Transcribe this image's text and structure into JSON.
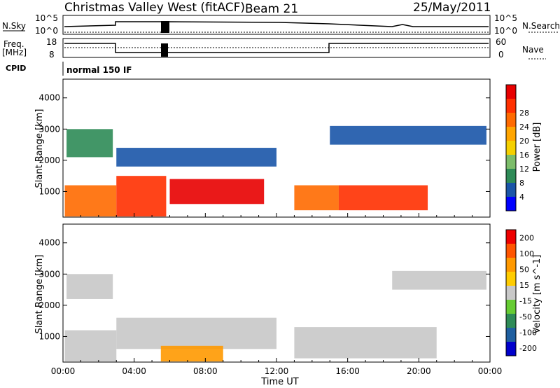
{
  "header": {
    "site": "Christmas Valley West (fitACF)",
    "beam": "Beam 21",
    "date": "25/May/2011"
  },
  "strip": {
    "nsky_label": "N.Sky",
    "nsky_ticks": [
      "10^5",
      "10^0"
    ],
    "nsearch_label": "N.Search",
    "nsearch_ticks": [
      "10^5",
      "10^0"
    ],
    "freq_label": "Freq.",
    "freq_unit": "[MHz]",
    "freq_ticks": [
      "18",
      "8"
    ],
    "nave_label": "Nave",
    "nave_ticks": [
      "60",
      "0"
    ],
    "cpid_label": "CPID",
    "cpid_text": "normal 150 IF"
  },
  "colors": {
    "power": [
      "#0000ff",
      "#1a55a8",
      "#2e8b57",
      "#7cbd6a",
      "#f5d000",
      "#ffa500",
      "#ff6a00",
      "#ff3000",
      "#e80000"
    ],
    "velocity": [
      "#0000cc",
      "#1f5fa0",
      "#2e8b57",
      "#66cc33",
      "#c8c8c8",
      "#ffcc00",
      "#ff9900",
      "#ff5500",
      "#ee0000"
    ]
  },
  "chart_data": [
    {
      "type": "heatmap",
      "title": "",
      "xlabel": "Time UT",
      "ylabel": "Slant Range [km]",
      "x_ticks": [
        "00:00",
        "04:00",
        "08:00",
        "12:00",
        "16:00",
        "20:00",
        "00:00"
      ],
      "xlim": [
        0,
        24
      ],
      "y_ticks": [
        "1000",
        "2000",
        "3000",
        "4000"
      ],
      "ylim": [
        180,
        4600
      ],
      "colorbar": {
        "label": "Power [dB]",
        "ticks": [
          "4",
          "8",
          "12",
          "16",
          "20",
          "24",
          "28"
        ]
      },
      "regions": [
        {
          "t": [
            0.1,
            3.0
          ],
          "r": [
            200,
            1200
          ],
          "level": 6
        },
        {
          "t": [
            0.2,
            2.8
          ],
          "r": [
            2100,
            3000
          ],
          "level": 2
        },
        {
          "t": [
            3.0,
            5.8
          ],
          "r": [
            200,
            1500
          ],
          "level": 7
        },
        {
          "t": [
            6.0,
            11.3
          ],
          "r": [
            600,
            1400
          ],
          "level": 8
        },
        {
          "t": [
            3.0,
            12.0
          ],
          "r": [
            1800,
            2400
          ],
          "level": 1
        },
        {
          "t": [
            13.0,
            15.5
          ],
          "r": [
            400,
            1200
          ],
          "level": 6
        },
        {
          "t": [
            15.5,
            20.5
          ],
          "r": [
            400,
            1200
          ],
          "level": 7
        },
        {
          "t": [
            15.0,
            23.8
          ],
          "r": [
            2500,
            3100
          ],
          "level": 1
        }
      ]
    },
    {
      "type": "heatmap",
      "title": "",
      "xlabel": "Time UT",
      "ylabel": "Slant Range [km]",
      "x_ticks": [
        "00:00",
        "04:00",
        "08:00",
        "12:00",
        "16:00",
        "20:00",
        "00:00"
      ],
      "xlim": [
        0,
        24
      ],
      "y_ticks": [
        "1000",
        "2000",
        "3000",
        "4000"
      ],
      "ylim": [
        180,
        4600
      ],
      "colorbar": {
        "label": "Velocity [m s^-1]",
        "ticks": [
          "200",
          "100",
          "50",
          "15",
          "-15",
          "-50",
          "-100",
          "-200"
        ]
      },
      "regions": [
        {
          "t": [
            0.1,
            3.0
          ],
          "r": [
            200,
            1200
          ],
          "level": 4
        },
        {
          "t": [
            0.2,
            2.8
          ],
          "r": [
            2200,
            3000
          ],
          "level": 4
        },
        {
          "t": [
            3.0,
            12.0
          ],
          "r": [
            600,
            1600
          ],
          "level": 4
        },
        {
          "t": [
            5.5,
            9.0
          ],
          "r": [
            200,
            700
          ],
          "level": 6
        },
        {
          "t": [
            13.0,
            21.0
          ],
          "r": [
            300,
            1300
          ],
          "level": 4
        },
        {
          "t": [
            18.5,
            23.8
          ],
          "r": [
            2500,
            3100
          ],
          "level": 4
        }
      ]
    }
  ]
}
